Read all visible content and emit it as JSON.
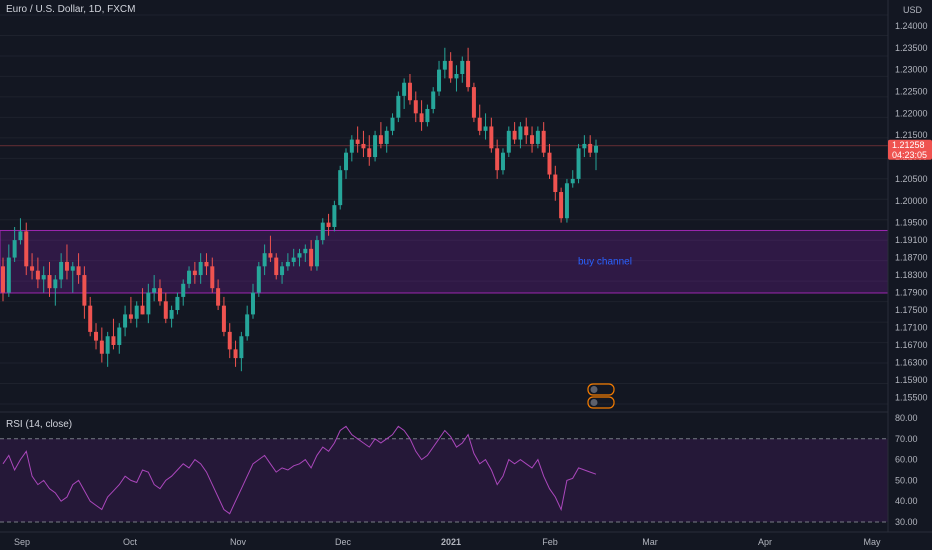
{
  "chart_title": "Euro / U.S. Dollar, 1D, FXCM",
  "currency": "USD",
  "price_axis": [
    "1.24000",
    "1.23500",
    "1.23000",
    "1.22500",
    "1.22000",
    "1.21500",
    "1.21000",
    "1.20500",
    "1.20000",
    "1.19500",
    "1.19100",
    "1.18700",
    "1.18300",
    "1.17900",
    "1.17500",
    "1.17100",
    "1.16700",
    "1.16300",
    "1.15900",
    "1.15500"
  ],
  "current_price": "1.21258",
  "countdown": "04:23:05",
  "annotation": "buy channel",
  "rsi_title": "RSI (14, close)",
  "rsi_axis": [
    "80.00",
    "70.00",
    "60.00",
    "50.00",
    "40.00",
    "30.00"
  ],
  "time_axis": [
    "Sep",
    "Oct",
    "Nov",
    "Dec",
    "2021",
    "Feb",
    "Mar",
    "Apr",
    "May"
  ],
  "colors": {
    "up": "#26a69a",
    "down": "#ef5350",
    "zone": "#7b1fa2",
    "rsi": "#ab47bc",
    "price_tag": "#ef5350"
  },
  "chart_data": {
    "type": "candlestick",
    "title": "Euro / U.S. Dollar, 1D, FXCM",
    "ylim": [
      1.1535,
      1.2425
    ],
    "zone": {
      "label": "buy channel",
      "from": 1.1789,
      "to": 1.1932
    },
    "last_price": 1.21258,
    "ohlc": [
      [
        1.185,
        1.187,
        1.177,
        1.179
      ],
      [
        1.179,
        1.19,
        1.178,
        1.187
      ],
      [
        1.187,
        1.194,
        1.186,
        1.191
      ],
      [
        1.191,
        1.196,
        1.19,
        1.193
      ],
      [
        1.193,
        1.195,
        1.183,
        1.185
      ],
      [
        1.185,
        1.188,
        1.182,
        1.184
      ],
      [
        1.184,
        1.187,
        1.18,
        1.182
      ],
      [
        1.182,
        1.185,
        1.179,
        1.183
      ],
      [
        1.183,
        1.186,
        1.178,
        1.18
      ],
      [
        1.18,
        1.183,
        1.176,
        1.182
      ],
      [
        1.182,
        1.188,
        1.18,
        1.186
      ],
      [
        1.186,
        1.19,
        1.182,
        1.184
      ],
      [
        1.184,
        1.186,
        1.179,
        1.185
      ],
      [
        1.185,
        1.188,
        1.181,
        1.183
      ],
      [
        1.183,
        1.185,
        1.173,
        1.176
      ],
      [
        1.176,
        1.178,
        1.169,
        1.17
      ],
      [
        1.17,
        1.172,
        1.166,
        1.168
      ],
      [
        1.168,
        1.171,
        1.163,
        1.165
      ],
      [
        1.165,
        1.17,
        1.162,
        1.169
      ],
      [
        1.169,
        1.173,
        1.166,
        1.167
      ],
      [
        1.167,
        1.172,
        1.165,
        1.171
      ],
      [
        1.171,
        1.176,
        1.169,
        1.174
      ],
      [
        1.174,
        1.178,
        1.172,
        1.173
      ],
      [
        1.173,
        1.177,
        1.171,
        1.176
      ],
      [
        1.176,
        1.18,
        1.174,
        1.174
      ],
      [
        1.174,
        1.181,
        1.172,
        1.179
      ],
      [
        1.179,
        1.183,
        1.177,
        1.18
      ],
      [
        1.18,
        1.182,
        1.176,
        1.177
      ],
      [
        1.177,
        1.179,
        1.172,
        1.173
      ],
      [
        1.173,
        1.176,
        1.171,
        1.175
      ],
      [
        1.175,
        1.179,
        1.174,
        1.178
      ],
      [
        1.178,
        1.182,
        1.176,
        1.181
      ],
      [
        1.181,
        1.185,
        1.18,
        1.184
      ],
      [
        1.184,
        1.186,
        1.181,
        1.183
      ],
      [
        1.183,
        1.188,
        1.181,
        1.186
      ],
      [
        1.186,
        1.188,
        1.183,
        1.185
      ],
      [
        1.185,
        1.187,
        1.179,
        1.18
      ],
      [
        1.18,
        1.182,
        1.175,
        1.176
      ],
      [
        1.176,
        1.178,
        1.169,
        1.17
      ],
      [
        1.17,
        1.172,
        1.164,
        1.166
      ],
      [
        1.166,
        1.168,
        1.162,
        1.164
      ],
      [
        1.164,
        1.17,
        1.161,
        1.169
      ],
      [
        1.169,
        1.176,
        1.168,
        1.174
      ],
      [
        1.174,
        1.181,
        1.173,
        1.179
      ],
      [
        1.179,
        1.186,
        1.178,
        1.185
      ],
      [
        1.185,
        1.19,
        1.183,
        1.188
      ],
      [
        1.188,
        1.192,
        1.186,
        1.187
      ],
      [
        1.187,
        1.188,
        1.182,
        1.183
      ],
      [
        1.183,
        1.186,
        1.181,
        1.185
      ],
      [
        1.185,
        1.188,
        1.184,
        1.186
      ],
      [
        1.186,
        1.189,
        1.185,
        1.187
      ],
      [
        1.187,
        1.189,
        1.185,
        1.188
      ],
      [
        1.188,
        1.19,
        1.186,
        1.189
      ],
      [
        1.189,
        1.191,
        1.184,
        1.185
      ],
      [
        1.185,
        1.192,
        1.184,
        1.191
      ],
      [
        1.191,
        1.196,
        1.19,
        1.195
      ],
      [
        1.195,
        1.197,
        1.192,
        1.194
      ],
      [
        1.194,
        1.2,
        1.193,
        1.199
      ],
      [
        1.199,
        1.208,
        1.198,
        1.207
      ],
      [
        1.207,
        1.212,
        1.205,
        1.211
      ],
      [
        1.211,
        1.215,
        1.209,
        1.214
      ],
      [
        1.214,
        1.217,
        1.211,
        1.213
      ],
      [
        1.213,
        1.216,
        1.21,
        1.212
      ],
      [
        1.212,
        1.215,
        1.208,
        1.21
      ],
      [
        1.21,
        1.216,
        1.209,
        1.215
      ],
      [
        1.215,
        1.218,
        1.212,
        1.213
      ],
      [
        1.213,
        1.217,
        1.211,
        1.216
      ],
      [
        1.216,
        1.22,
        1.215,
        1.219
      ],
      [
        1.219,
        1.225,
        1.218,
        1.224
      ],
      [
        1.224,
        1.228,
        1.221,
        1.227
      ],
      [
        1.227,
        1.229,
        1.222,
        1.223
      ],
      [
        1.223,
        1.225,
        1.218,
        1.22
      ],
      [
        1.22,
        1.223,
        1.216,
        1.218
      ],
      [
        1.218,
        1.222,
        1.217,
        1.221
      ],
      [
        1.221,
        1.226,
        1.22,
        1.225
      ],
      [
        1.225,
        1.232,
        1.224,
        1.23
      ],
      [
        1.23,
        1.235,
        1.228,
        1.232
      ],
      [
        1.232,
        1.234,
        1.227,
        1.228
      ],
      [
        1.228,
        1.231,
        1.225,
        1.229
      ],
      [
        1.229,
        1.233,
        1.227,
        1.232
      ],
      [
        1.232,
        1.235,
        1.225,
        1.226
      ],
      [
        1.226,
        1.227,
        1.218,
        1.219
      ],
      [
        1.219,
        1.222,
        1.215,
        1.216
      ],
      [
        1.216,
        1.22,
        1.214,
        1.217
      ],
      [
        1.217,
        1.219,
        1.211,
        1.212
      ],
      [
        1.212,
        1.214,
        1.205,
        1.207
      ],
      [
        1.207,
        1.212,
        1.206,
        1.211
      ],
      [
        1.211,
        1.217,
        1.21,
        1.216
      ],
      [
        1.216,
        1.218,
        1.213,
        1.214
      ],
      [
        1.214,
        1.218,
        1.212,
        1.217
      ],
      [
        1.217,
        1.219,
        1.213,
        1.215
      ],
      [
        1.215,
        1.217,
        1.211,
        1.213
      ],
      [
        1.213,
        1.217,
        1.212,
        1.216
      ],
      [
        1.216,
        1.218,
        1.21,
        1.211
      ],
      [
        1.211,
        1.213,
        1.205,
        1.206
      ],
      [
        1.206,
        1.208,
        1.2,
        1.202
      ],
      [
        1.202,
        1.203,
        1.195,
        1.196
      ],
      [
        1.196,
        1.205,
        1.195,
        1.204
      ],
      [
        1.204,
        1.207,
        1.203,
        1.205
      ],
      [
        1.205,
        1.213,
        1.204,
        1.212
      ],
      [
        1.212,
        1.215,
        1.21,
        1.213
      ],
      [
        1.213,
        1.215,
        1.21,
        1.211
      ],
      [
        1.211,
        1.214,
        1.207,
        1.2126
      ]
    ],
    "rsi": [
      58,
      62,
      55,
      60,
      64,
      52,
      48,
      50,
      46,
      44,
      40,
      42,
      48,
      50,
      45,
      40,
      38,
      36,
      42,
      45,
      48,
      52,
      50,
      49,
      55,
      54,
      48,
      46,
      50,
      52,
      55,
      58,
      56,
      60,
      58,
      54,
      48,
      42,
      36,
      34,
      40,
      46,
      52,
      58,
      60,
      62,
      58,
      54,
      56,
      55,
      57,
      58,
      60,
      56,
      62,
      66,
      64,
      68,
      74,
      76,
      72,
      70,
      68,
      66,
      70,
      68,
      70,
      72,
      76,
      74,
      70,
      64,
      60,
      62,
      66,
      70,
      74,
      71,
      66,
      68,
      72,
      63,
      58,
      60,
      55,
      48,
      52,
      60,
      58,
      60,
      58,
      56,
      60,
      52,
      46,
      42,
      36,
      50,
      51,
      56,
      55,
      54,
      53
    ]
  }
}
